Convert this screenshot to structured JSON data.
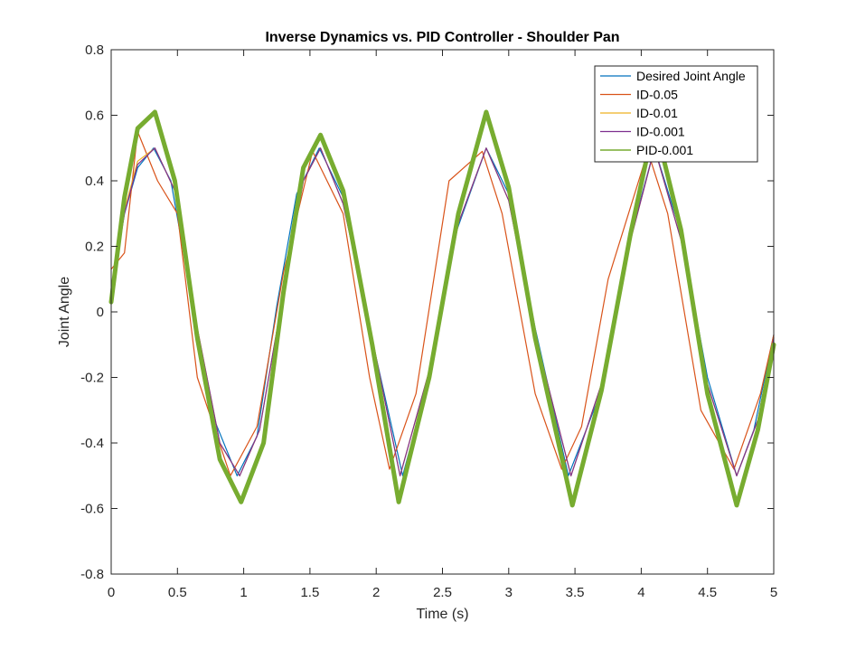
{
  "chart_data": {
    "type": "line",
    "title": "Inverse Dynamics vs. PID Controller - Shoulder Pan",
    "xlabel": "Time (s)",
    "ylabel": "Joint Angle",
    "xlim": [
      0,
      5
    ],
    "ylim": [
      -0.8,
      0.8
    ],
    "xticks": [
      "0",
      "0.5",
      "1",
      "1.5",
      "2",
      "2.5",
      "3",
      "3.5",
      "4",
      "4.5",
      "5"
    ],
    "yticks": [
      "-0.8",
      "-0.6",
      "-0.4",
      "-0.2",
      "0",
      "0.2",
      "0.4",
      "0.6",
      "0.8"
    ],
    "grid": false,
    "legend_position": "top-right",
    "series": [
      {
        "name": "Desired Joint Angle",
        "color": "#0072bd",
        "x": [
          0,
          0.1,
          0.2,
          0.32,
          0.45,
          0.6,
          0.75,
          0.95,
          1.1,
          1.25,
          1.4,
          1.57,
          1.75,
          1.95,
          2.2,
          2.4,
          2.6,
          2.83,
          3.0,
          3.2,
          3.45,
          3.7,
          3.9,
          4.1,
          4.3,
          4.5,
          4.72,
          4.85,
          5.0
        ],
        "y": [
          0.07,
          0.3,
          0.44,
          0.5,
          0.4,
          0.06,
          -0.3,
          -0.5,
          -0.38,
          0.02,
          0.36,
          0.5,
          0.35,
          -0.05,
          -0.5,
          -0.2,
          0.24,
          0.5,
          0.36,
          -0.05,
          -0.5,
          -0.24,
          0.2,
          0.5,
          0.24,
          -0.2,
          -0.5,
          -0.36,
          -0.07
        ]
      },
      {
        "name": "ID-0.05",
        "color": "#d95319",
        "x": [
          0,
          0.1,
          0.2,
          0.35,
          0.5,
          0.65,
          0.9,
          1.1,
          1.3,
          1.52,
          1.75,
          1.95,
          2.1,
          2.3,
          2.55,
          2.8,
          2.95,
          3.2,
          3.4,
          3.55,
          3.75,
          4.05,
          4.2,
          4.45,
          4.7,
          4.9,
          5.0
        ],
        "y": [
          0.13,
          0.18,
          0.55,
          0.4,
          0.3,
          -0.2,
          -0.5,
          -0.35,
          0.12,
          0.49,
          0.3,
          -0.2,
          -0.48,
          -0.25,
          0.4,
          0.49,
          0.3,
          -0.25,
          -0.48,
          -0.35,
          0.1,
          0.49,
          0.3,
          -0.3,
          -0.48,
          -0.25,
          -0.07
        ]
      },
      {
        "name": "ID-0.01",
        "color": "#edb120",
        "x": [
          0,
          0.1,
          0.2,
          0.33,
          0.48,
          0.65,
          0.82,
          0.97,
          1.12,
          1.3,
          1.45,
          1.58,
          1.75,
          1.97,
          2.18,
          2.4,
          2.62,
          2.83,
          3.0,
          3.2,
          3.47,
          3.7,
          3.92,
          4.1,
          4.3,
          4.5,
          4.72,
          4.88,
          5.0
        ],
        "y": [
          0.06,
          0.31,
          0.46,
          0.5,
          0.37,
          -0.05,
          -0.4,
          -0.5,
          -0.36,
          0.06,
          0.4,
          0.5,
          0.33,
          -0.08,
          -0.5,
          -0.18,
          0.27,
          0.5,
          0.34,
          -0.07,
          -0.5,
          -0.22,
          0.22,
          0.5,
          0.22,
          -0.22,
          -0.5,
          -0.33,
          -0.08
        ]
      },
      {
        "name": "ID-0.001",
        "color": "#7e2f8e",
        "x": [
          0,
          0.1,
          0.2,
          0.33,
          0.48,
          0.65,
          0.82,
          0.97,
          1.12,
          1.3,
          1.45,
          1.58,
          1.75,
          1.97,
          2.18,
          2.4,
          2.62,
          2.83,
          3.0,
          3.2,
          3.47,
          3.7,
          3.92,
          4.1,
          4.3,
          4.5,
          4.72,
          4.88,
          5.0
        ],
        "y": [
          0.05,
          0.3,
          0.45,
          0.5,
          0.37,
          -0.05,
          -0.4,
          -0.5,
          -0.36,
          0.06,
          0.4,
          0.5,
          0.33,
          -0.08,
          -0.5,
          -0.18,
          0.27,
          0.5,
          0.34,
          -0.07,
          -0.5,
          -0.22,
          0.22,
          0.5,
          0.22,
          -0.22,
          -0.5,
          -0.33,
          -0.08
        ]
      },
      {
        "name": "PID-0.001",
        "color": "#77ac30",
        "x": [
          0,
          0.1,
          0.2,
          0.33,
          0.48,
          0.65,
          0.82,
          0.98,
          1.15,
          1.3,
          1.45,
          1.58,
          1.75,
          1.97,
          2.17,
          2.4,
          2.62,
          2.83,
          3.0,
          3.2,
          3.48,
          3.7,
          3.92,
          4.1,
          4.3,
          4.5,
          4.72,
          4.88,
          5.0
        ],
        "y": [
          0.03,
          0.35,
          0.56,
          0.61,
          0.4,
          -0.08,
          -0.45,
          -0.58,
          -0.4,
          0.06,
          0.44,
          0.54,
          0.37,
          -0.1,
          -0.58,
          -0.2,
          0.3,
          0.61,
          0.38,
          -0.08,
          -0.59,
          -0.24,
          0.24,
          0.58,
          0.25,
          -0.25,
          -0.59,
          -0.36,
          -0.1
        ]
      }
    ]
  }
}
